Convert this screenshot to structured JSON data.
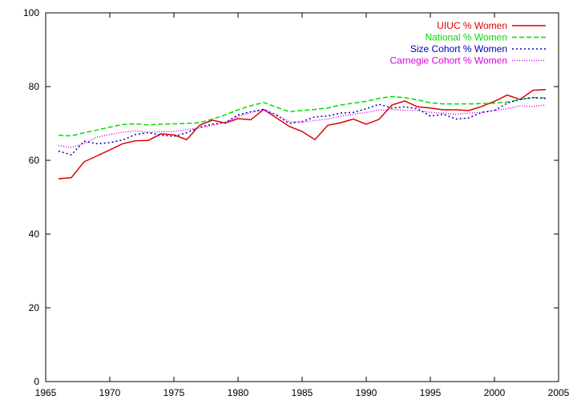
{
  "chart_data": {
    "type": "line",
    "title": "",
    "xlabel": "",
    "ylabel": "",
    "xlim": [
      1965,
      2005
    ],
    "ylim": [
      0,
      100
    ],
    "xticks": [
      1965,
      1970,
      1975,
      1980,
      1985,
      1990,
      1995,
      2000,
      2005
    ],
    "yticks": [
      0,
      20,
      40,
      60,
      80,
      100
    ],
    "grid": false,
    "legend_position": "top-right",
    "x": [
      1966,
      1967,
      1968,
      1969,
      1970,
      1971,
      1972,
      1973,
      1974,
      1975,
      1976,
      1977,
      1978,
      1979,
      1980,
      1981,
      1982,
      1983,
      1984,
      1985,
      1986,
      1987,
      1988,
      1989,
      1990,
      1991,
      1992,
      1993,
      1994,
      1995,
      1996,
      1997,
      1998,
      1999,
      2000,
      2001,
      2002,
      2003,
      2004
    ],
    "series": [
      {
        "name": "UIUC % Women",
        "color": "#dd0000",
        "dash": "solid",
        "values": [
          55.0,
          55.3,
          59.6,
          61.2,
          62.8,
          64.5,
          65.3,
          65.4,
          67.2,
          66.9,
          65.6,
          69.5,
          70.9,
          70.1,
          71.3,
          71.0,
          73.8,
          71.5,
          69.2,
          67.8,
          65.6,
          69.5,
          70.2,
          71.2,
          69.8,
          71.1,
          75.0,
          76.1,
          74.5,
          74.2,
          73.7,
          73.7,
          73.5,
          74.6,
          76.0,
          77.7,
          76.5,
          79.0,
          79.2
        ]
      },
      {
        "name": "National % Women",
        "color": "#00dd00",
        "dash": "dashed",
        "values": [
          66.8,
          66.6,
          67.5,
          68.2,
          69.0,
          69.7,
          69.9,
          69.6,
          69.8,
          69.9,
          70.0,
          70.2,
          71.2,
          72.3,
          73.7,
          74.8,
          75.7,
          74.4,
          73.2,
          73.5,
          73.8,
          74.2,
          75.0,
          75.5,
          76.0,
          76.8,
          77.3,
          77.0,
          76.4,
          75.6,
          75.3,
          75.3,
          75.3,
          75.4,
          75.5,
          75.8,
          76.5,
          77.0,
          76.9
        ]
      },
      {
        "name": "Size Cohort % Women",
        "color": "#0000bb",
        "dash": "dotted",
        "values": [
          62.5,
          61.5,
          65.2,
          64.5,
          64.8,
          65.5,
          67.0,
          67.5,
          66.8,
          66.5,
          67.5,
          69.0,
          69.8,
          70.2,
          72.3,
          73.2,
          73.8,
          72.3,
          70.0,
          70.5,
          71.8,
          72.0,
          72.8,
          73.0,
          74.0,
          75.2,
          74.2,
          74.5,
          74.0,
          72.0,
          72.5,
          71.2,
          71.5,
          73.0,
          73.5,
          75.5,
          76.5,
          77.0,
          76.8
        ]
      },
      {
        "name": "Carnegie Cohort % Women",
        "color": "#dd00dd",
        "dash": "dotted-fine",
        "values": [
          64.0,
          63.5,
          64.5,
          66.3,
          67.0,
          67.6,
          68.0,
          67.6,
          67.8,
          67.8,
          68.3,
          68.8,
          69.5,
          70.3,
          71.8,
          73.0,
          73.6,
          72.2,
          70.5,
          70.3,
          70.8,
          71.2,
          72.0,
          72.5,
          73.0,
          73.6,
          73.8,
          73.6,
          73.5,
          73.0,
          72.8,
          72.5,
          72.8,
          73.0,
          73.5,
          74.0,
          74.8,
          74.6,
          75.0
        ]
      }
    ]
  }
}
